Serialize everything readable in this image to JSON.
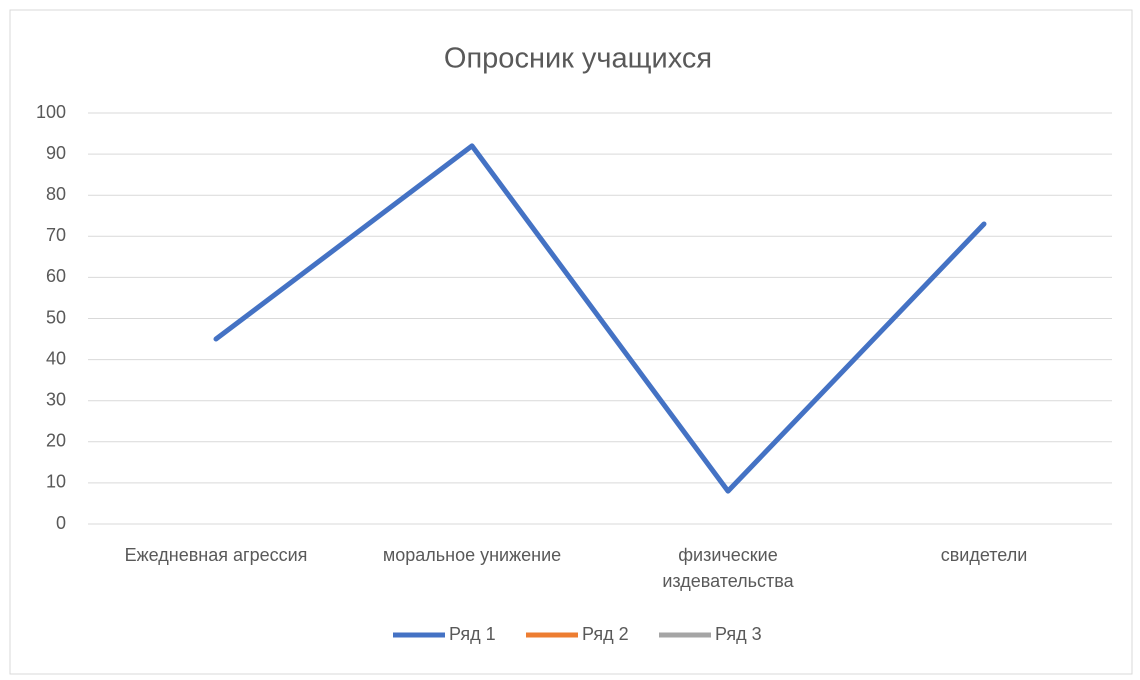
{
  "chart_data": {
    "type": "line",
    "title": "Опросник учащихся",
    "categories": [
      "Ежедневная агрессия",
      "моральное унижение",
      "физические издевательства",
      "свидетели"
    ],
    "series": [
      {
        "name": "Ряд 1",
        "color": "#4472c4",
        "values": [
          45,
          92,
          8,
          73
        ]
      },
      {
        "name": "Ряд 2",
        "color": "#ed7d31",
        "values": [
          null,
          null,
          null,
          null
        ]
      },
      {
        "name": "Ряд 3",
        "color": "#a5a5a5",
        "values": [
          null,
          null,
          null,
          null
        ]
      }
    ],
    "ylim": [
      0,
      100
    ],
    "yticks": [
      0,
      10,
      20,
      30,
      40,
      50,
      60,
      70,
      80,
      90,
      100
    ],
    "grid": true,
    "legend": "bottom"
  }
}
